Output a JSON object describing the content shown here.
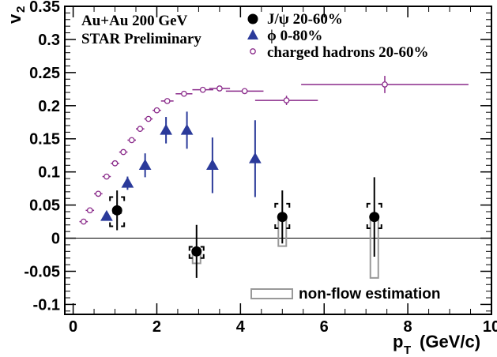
{
  "chart_data": {
    "type": "scatter",
    "title": "",
    "annotations": [
      "Au+Au 200 GeV",
      "STAR Preliminary"
    ],
    "xlabel": {
      "main": "p",
      "sub": "T",
      "unit": "(GeV/c)"
    },
    "ylabel": {
      "main": "v",
      "sub": "2"
    },
    "xlim": [
      -0.2,
      10
    ],
    "ylim": [
      -0.115,
      0.35
    ],
    "x_ticks": [
      "0",
      "2",
      "4",
      "6",
      "8",
      "10"
    ],
    "y_ticks": [
      "-0.1",
      "-0.05",
      "0",
      "0.05",
      "0.1",
      "0.15",
      "0.2",
      "0.25",
      "0.3",
      "0.35"
    ],
    "grid": false,
    "legend_position": "top-right",
    "series": [
      {
        "name": "J/ψ 20-60%",
        "marker": "circle-filled",
        "color": "#000000",
        "points": [
          {
            "x": 1.05,
            "y": 0.042,
            "yerr": 0.03,
            "sys_lo": 0.018,
            "sys_hi": 0.062
          },
          {
            "x": 2.95,
            "y": -0.02,
            "yerr": 0.04,
            "sys_lo": -0.03,
            "sys_hi": -0.013
          },
          {
            "x": 5.0,
            "y": 0.032,
            "yerr": 0.04,
            "sys_lo": 0.015,
            "sys_hi": 0.052
          },
          {
            "x": 7.2,
            "y": 0.032,
            "yerr": 0.06,
            "sys_lo": 0.015,
            "sys_hi": 0.052
          }
        ]
      },
      {
        "name": "ϕ 0-80%",
        "marker": "triangle-filled",
        "color": "#2b3a9a",
        "points": [
          {
            "x": 0.8,
            "y": 0.033,
            "yerr": 0.006
          },
          {
            "x": 1.3,
            "y": 0.083,
            "yerr": 0.01
          },
          {
            "x": 1.72,
            "y": 0.11,
            "yerr": 0.018
          },
          {
            "x": 2.22,
            "y": 0.163,
            "yerr": 0.02
          },
          {
            "x": 2.72,
            "y": 0.163,
            "yerr": 0.028
          },
          {
            "x": 3.33,
            "y": 0.11,
            "yerr": 0.042
          },
          {
            "x": 4.35,
            "y": 0.12,
            "yerr": 0.058
          }
        ]
      },
      {
        "name": "charged hadrons 20-60%",
        "marker": "circle-open",
        "color": "#8a2a8a",
        "points": [
          {
            "x": 0.25,
            "y": 0.025,
            "xerr": 0.1
          },
          {
            "x": 0.4,
            "y": 0.042,
            "xerr": 0.1
          },
          {
            "x": 0.6,
            "y": 0.067,
            "xerr": 0.1
          },
          {
            "x": 0.8,
            "y": 0.093,
            "xerr": 0.1
          },
          {
            "x": 1.0,
            "y": 0.113,
            "xerr": 0.1
          },
          {
            "x": 1.2,
            "y": 0.13,
            "xerr": 0.1
          },
          {
            "x": 1.4,
            "y": 0.148,
            "xerr": 0.1
          },
          {
            "x": 1.6,
            "y": 0.165,
            "xerr": 0.1
          },
          {
            "x": 1.8,
            "y": 0.18,
            "xerr": 0.1
          },
          {
            "x": 2.0,
            "y": 0.193,
            "xerr": 0.1
          },
          {
            "x": 2.25,
            "y": 0.207,
            "xerr": 0.15
          },
          {
            "x": 2.65,
            "y": 0.218,
            "xerr": 0.2
          },
          {
            "x": 3.1,
            "y": 0.224,
            "xerr": 0.25
          },
          {
            "x": 3.5,
            "y": 0.226,
            "xerr": 0.25
          },
          {
            "x": 4.1,
            "y": 0.222,
            "xerr": 0.45,
            "yerr": 0.003
          },
          {
            "x": 5.1,
            "y": 0.208,
            "xerr": 0.75,
            "yerr": 0.007
          },
          {
            "x": 7.45,
            "y": 0.232,
            "xerr": 2.0,
            "yerr": 0.013
          }
        ]
      }
    ],
    "nonflow_label": "non-flow estimation",
    "nonflow_boxes": [
      {
        "x": 1.05,
        "lo": 0.04,
        "hi": 0.04
      },
      {
        "x": 2.95,
        "lo": -0.038,
        "hi": -0.02
      },
      {
        "x": 5.0,
        "lo": -0.012,
        "hi": 0.032
      },
      {
        "x": 7.2,
        "lo": -0.06,
        "hi": 0.032
      }
    ]
  }
}
